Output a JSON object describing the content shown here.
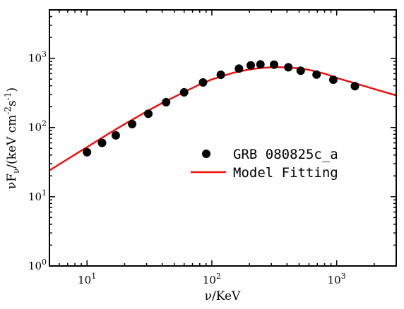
{
  "chart_data": {
    "type": "scatter",
    "xscale": "log",
    "yscale": "log",
    "xlim": [
      5,
      3000
    ],
    "ylim": [
      1,
      5000
    ],
    "xlabel": "ν/KeV",
    "ylabel": "νF_ν/(keV cm^-2 s^-1)",
    "x_tick_labels": [
      "10^1",
      "10^2",
      "10^3"
    ],
    "y_tick_labels": [
      "10^0",
      "10^1",
      "10^2",
      "10^3"
    ],
    "legend_position": "center-right",
    "series": [
      {
        "name": "GRB 080825c_a",
        "style": "marker",
        "color": "#000000",
        "x": [
          10,
          13.2,
          17,
          23,
          31,
          43,
          60,
          85,
          118,
          165,
          205,
          245,
          315,
          410,
          515,
          690,
          940,
          1400
        ],
        "y": [
          44,
          60,
          77,
          112,
          158,
          232,
          322,
          448,
          578,
          710,
          790,
          815,
          810,
          740,
          660,
          580,
          490,
          395
        ]
      },
      {
        "name": "Model Fitting",
        "style": "line",
        "color": "#ee1111",
        "x": [
          5,
          7,
          10,
          15,
          20,
          30,
          40,
          60,
          80,
          100,
          150,
          200,
          250,
          300,
          350,
          400,
          500,
          600,
          800,
          1000,
          1500,
          2000,
          3000
        ],
        "y": [
          24,
          35,
          52,
          82,
          112,
          170,
          226,
          325,
          420,
          495,
          620,
          690,
          725,
          740,
          742,
          738,
          715,
          680,
          600,
          520,
          420,
          360,
          290
        ]
      }
    ]
  }
}
